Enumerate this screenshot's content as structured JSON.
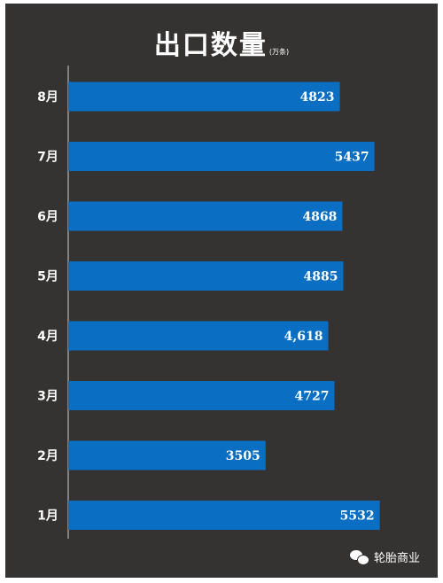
{
  "chart_data": {
    "type": "bar",
    "orientation": "horizontal",
    "title": "出口数量",
    "unit": "(万条)",
    "categories": [
      "8月",
      "7月",
      "6月",
      "5月",
      "4月",
      "3月",
      "2月",
      "1月"
    ],
    "values": [
      4823,
      5437,
      4868,
      4885,
      4618,
      4727,
      3505,
      5532
    ],
    "value_labels": [
      "4823",
      "5437",
      "4868",
      "4885",
      "4,618",
      "4727",
      "3505",
      "5532"
    ],
    "xlim": [
      0,
      5900
    ],
    "grid": false
  },
  "colors": {
    "background": "#353331",
    "bar": "#0a6fc2",
    "text": "#ffffff",
    "axis": "#cfcfcf"
  },
  "watermark": {
    "icon": "wechat-icon",
    "text": "轮胎商业"
  }
}
